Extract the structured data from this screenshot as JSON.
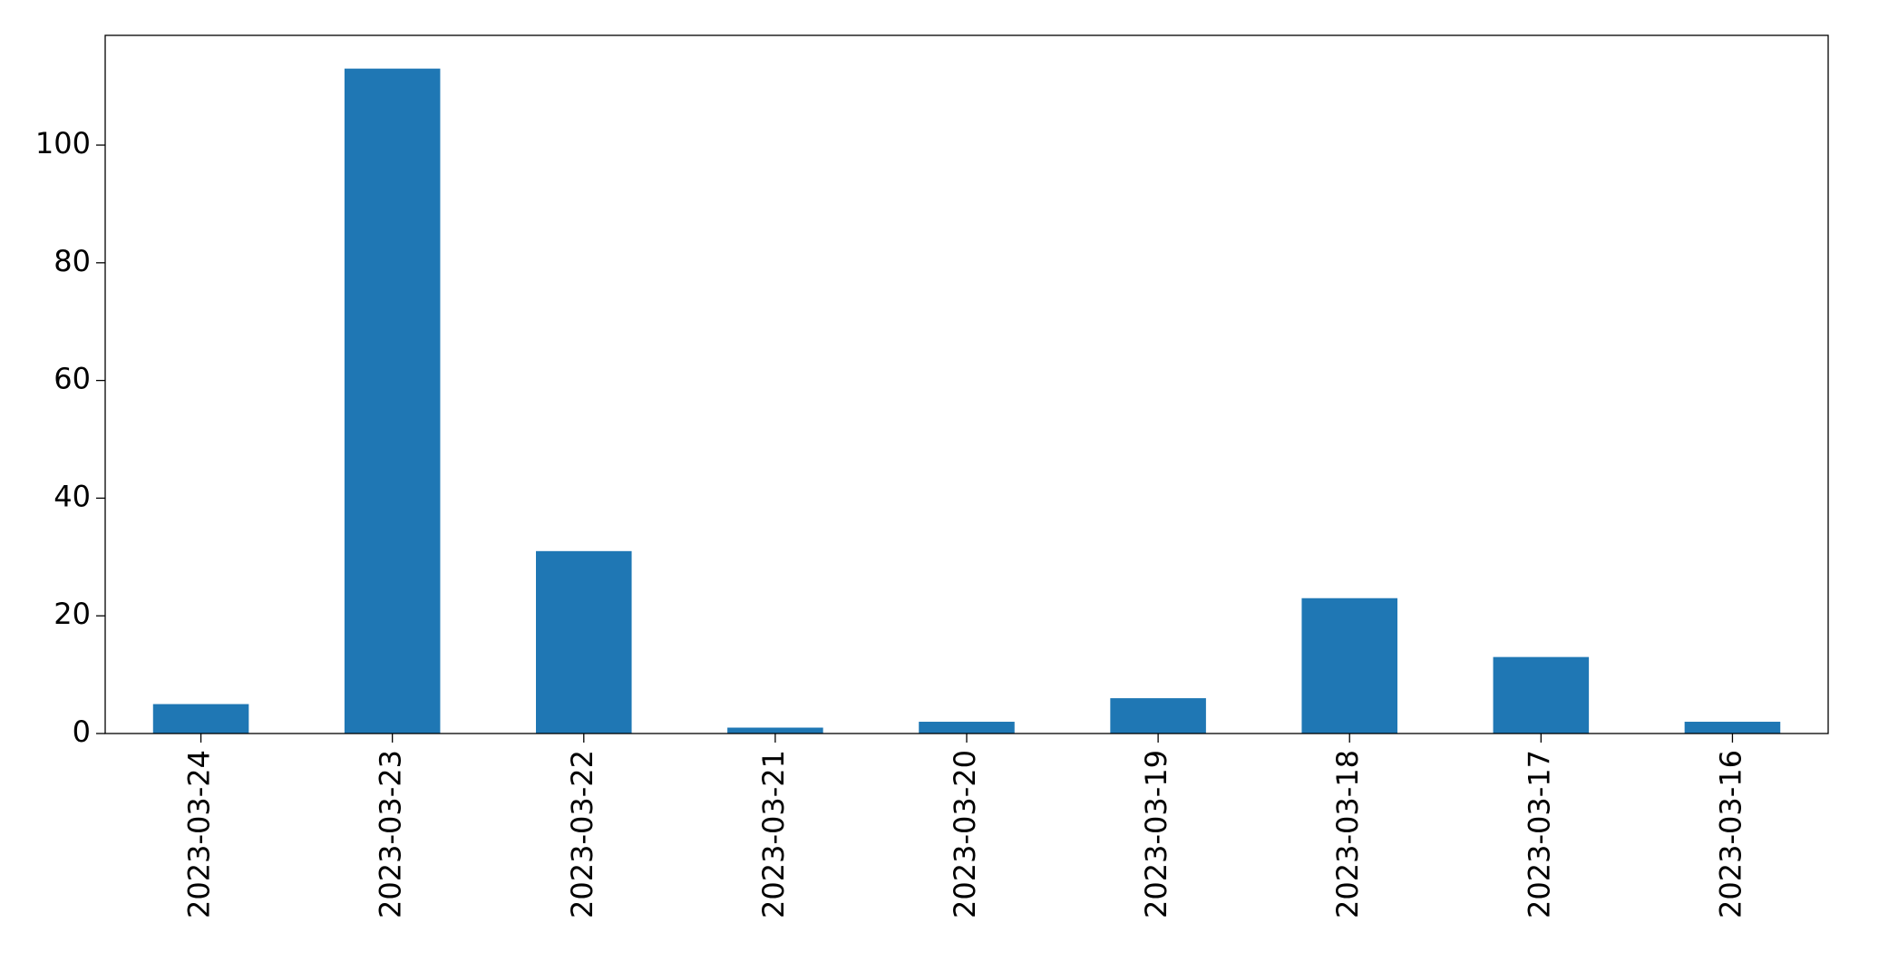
{
  "chart_data": {
    "type": "bar",
    "categories": [
      "2023-03-24",
      "2023-03-23",
      "2023-03-22",
      "2023-03-21",
      "2023-03-20",
      "2023-03-19",
      "2023-03-18",
      "2023-03-17",
      "2023-03-16"
    ],
    "values": [
      5,
      113,
      31,
      1,
      2,
      6,
      23,
      13,
      2
    ],
    "color": "#1f77b4",
    "ylim": [
      0,
      118.65
    ],
    "yticks": [
      0,
      20,
      40,
      60,
      80,
      100
    ],
    "grid": false
  }
}
